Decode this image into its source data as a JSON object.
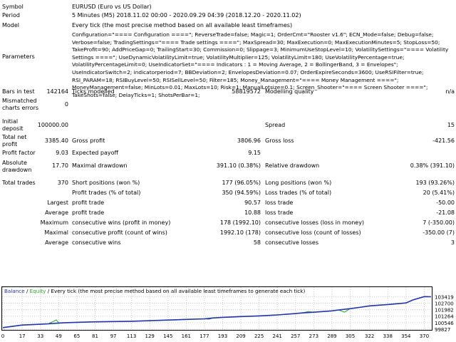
{
  "labels": {
    "symbol": "Symbol",
    "period": "Period",
    "model": "Model",
    "parameters": "Parameters",
    "bars_in_test": "Bars in test",
    "ticks_modelled": "Ticks modelled",
    "modelling_quality": "Modelling quality",
    "mismatched": "Mismatched\ncharts errors",
    "initial_deposit": "Initial\ndeposit",
    "spread": "Spread",
    "total_net_profit": "Total net\nprofit",
    "gross_profit": "Gross profit",
    "gross_loss": "Gross loss",
    "profit_factor": "Profit factor",
    "expected_payoff": "Expected payoff",
    "absolute_drawdown": "Absolute\ndrawdown",
    "maximal_drawdown": "Maximal drawdown",
    "relative_drawdown": "Relative drawdown",
    "total_trades": "Total trades",
    "short_positions": "Short positions (won %)",
    "long_positions": "Long positions (won %)",
    "profit_trades": "Profit trades (% of total)",
    "loss_trades": "Loss trades (% of total)",
    "largest": "Largest",
    "average": "Average",
    "maximum": "Maximum",
    "maximal": "Maximal",
    "profit_trade": "profit trade",
    "loss_trade": "loss trade",
    "cons_wins_money": "consecutive wins (profit in money)",
    "cons_losses_money": "consecutive losses (loss in money)",
    "cons_profit_count": "consecutive profit (count of wins)",
    "cons_loss_count": "consecutive loss (count of losses)",
    "cons_wins": "consecutive wins",
    "cons_losses": "consecutive losses"
  },
  "values": {
    "symbol": "EURUSD (Euro vs US Dollar)",
    "period": "5 Minutes (M5) 2018.11.02 00:00 - 2020.09.29 04:39 (2018.12.20 - 2020.11.02)",
    "model": "Every tick (the most precise method based on all available least timeframes)",
    "parameters": "Configuration=\"==== Configuration ====\"; ReverseTrade=false; Magic=1; OrderCmt=\"Rooster v1.6\"; ECN_Mode=false; Debug=false; Verbose=false; TradingSettings=\"==== Trade settings ====\"; MaxSpread=30; MaxExecution=0; MaxExecutionMinutes=5; StopLoss=50; TakeProfit=90; AddPriceGap=0; TrailingStart=30; Commission=0; Slippage=3; MinimumUseStopLevel=10; VolatilitySettings=\"==== Volatility Settings ====\"; UseDynamicVolatilityLimit=true; VolatilityMultiplier=125; VolatilityLimit=180; UseVolatilityPercentage=true; VolatilityPercentageLimit=0; UseIndicatorSet=\"==== Indicators : 1 = Moving Average, 2 = BollingerBand, 3 = Envelopes\"; UseIndicatorSwitch=2; indicatorperiod=7; BBDeviation=2; EnvelopesDeviation=0.07; OrderExpireSeconds=3600; UseRSIFilter=true; RSI_PARAM=18; RSIBuyLevel=50; RSISellLevel=50; Filter=185; Money_Management=\"==== Money Management ====\"; MoneyManagement=false; MinLots=0.01; MaxLots=10; Risk=1; ManualLotsize=0.1; Screen_Shooter=\"==== Screen Shooter ====\"; TakeShots=false; DelayTicks=1; ShotsPerBar=1;",
    "bars_in_test": "142164",
    "ticks_modelled": "58819572",
    "modelling_quality": "n/a",
    "mismatched": "0",
    "initial_deposit": "100000.00",
    "spread": "15",
    "total_net_profit": "3385.40",
    "gross_profit": "3806.96",
    "gross_loss": "-421.56",
    "profit_factor": "9.03",
    "expected_payoff": "9.15",
    "absolute_drawdown": "17.70",
    "maximal_drawdown": "391.10 (0.38%)",
    "relative_drawdown": "0.38% (391.10)",
    "total_trades": "370",
    "short_positions": "177 (96.05%)",
    "long_positions": "193 (93.26%)",
    "profit_trades": "350 (94.59%)",
    "loss_trades": "20 (5.41%)",
    "largest_profit": "90.57",
    "largest_loss": "-50.00",
    "average_profit": "10.88",
    "average_loss": "-21.08",
    "max_cons_wins_money": "178 (1992.10)",
    "max_cons_losses_money": "7 (-350.00)",
    "max_cons_profit_count": "1992.10 (178)",
    "max_cons_loss_count": "-350.00 (7)",
    "avg_cons_wins": "58",
    "avg_cons_losses": "3"
  },
  "chart_legend": {
    "balance": "Balance",
    "sep": " / ",
    "equity": "Equity",
    "rest": " / Every tick (the most precise method based on all available least timeframes to generate each tick)"
  },
  "colors": {
    "balance": "#1f35b0",
    "equity": "#27a327",
    "grid": "#c8c8c8"
  },
  "chart_data": {
    "type": "line",
    "title": "",
    "x_ticks": [
      "0",
      "17",
      "33",
      "49",
      "65",
      "81",
      "97",
      "113",
      "129",
      "145",
      "161",
      "177",
      "193",
      "209",
      "225",
      "241",
      "257",
      "273",
      "289",
      "305",
      "322",
      "338",
      "354",
      "370"
    ],
    "y_ticks": [
      "103419",
      "102700",
      "101982",
      "101264",
      "100546",
      "99827"
    ],
    "xlim": [
      0,
      376
    ],
    "ylim": [
      99827,
      103600
    ],
    "series": [
      {
        "name": "Balance",
        "x": [
          0,
          17,
          33,
          40,
          49,
          55,
          65,
          81,
          97,
          113,
          129,
          145,
          161,
          177,
          185,
          193,
          209,
          225,
          241,
          257,
          263,
          273,
          289,
          295,
          305,
          315,
          322,
          338,
          354,
          360,
          370,
          376
        ],
        "y": [
          100000,
          100280,
          100370,
          100420,
          100500,
          100540,
          100580,
          100640,
          100670,
          100700,
          100760,
          100830,
          100900,
          100970,
          101070,
          101130,
          101220,
          101290,
          101400,
          101550,
          101620,
          101700,
          101850,
          101950,
          102090,
          102260,
          102400,
          102550,
          102720,
          103050,
          103420,
          103400
        ]
      },
      {
        "name": "Equity",
        "x": [
          0,
          17,
          33,
          40,
          47,
          49,
          55,
          65,
          81,
          97,
          113,
          129,
          145,
          161,
          177,
          181,
          185,
          193,
          209,
          225,
          241,
          257,
          263,
          268,
          273,
          289,
          295,
          300,
          305,
          315,
          322,
          338,
          354,
          358,
          360,
          370,
          376
        ],
        "y": [
          100000,
          100280,
          100370,
          100420,
          100850,
          100500,
          100540,
          100580,
          100640,
          100670,
          100700,
          100760,
          100830,
          100900,
          100970,
          100930,
          101070,
          101130,
          101220,
          101290,
          101400,
          101550,
          101620,
          101780,
          101700,
          101850,
          101950,
          101700,
          102090,
          102260,
          102400,
          102550,
          102720,
          102950,
          103050,
          103420,
          103400
        ]
      }
    ]
  }
}
